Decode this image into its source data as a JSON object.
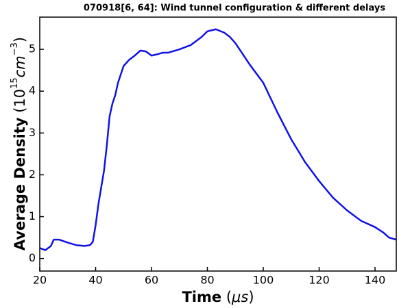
{
  "chart_data": {
    "type": "line",
    "title": "070918[6, 64]: Wind tunnel configuration & different delays",
    "xlabel": {
      "bold": "Time",
      "unit_open": "(",
      "unit": "μs",
      "unit_close": ")"
    },
    "ylabel": {
      "bold": "Average Density",
      "unit_base": "(10",
      "unit_exp1": "15",
      "unit_mid": "cm",
      "unit_exp2": "−3",
      "unit_close": ")"
    },
    "x": [
      20,
      22,
      24,
      25,
      27,
      30,
      33,
      36,
      38,
      39,
      40,
      41,
      42,
      43,
      44,
      45,
      46,
      47,
      48,
      49,
      50,
      52,
      54,
      56,
      58,
      60,
      62,
      64,
      66,
      70,
      74,
      78,
      80,
      83,
      86,
      88,
      90,
      92,
      95,
      100,
      105,
      110,
      115,
      120,
      125,
      130,
      135,
      140,
      143,
      145,
      147.6
    ],
    "series": [
      {
        "name": "Average Density",
        "color": "#1111e6",
        "values": [
          0.25,
          0.2,
          0.3,
          0.45,
          0.45,
          0.38,
          0.32,
          0.3,
          0.32,
          0.4,
          0.8,
          1.3,
          1.7,
          2.1,
          2.7,
          3.4,
          3.7,
          3.9,
          4.2,
          4.4,
          4.6,
          4.75,
          4.85,
          4.97,
          4.95,
          4.85,
          4.88,
          4.92,
          4.92,
          5.0,
          5.1,
          5.3,
          5.43,
          5.48,
          5.4,
          5.3,
          5.15,
          4.95,
          4.65,
          4.2,
          3.5,
          2.85,
          2.3,
          1.85,
          1.45,
          1.15,
          0.9,
          0.75,
          0.62,
          0.5,
          0.45
        ]
      }
    ],
    "xlim": [
      20,
      147.6
    ],
    "ylim": [
      -0.3,
      5.77
    ],
    "xticks": [
      20,
      40,
      60,
      80,
      100,
      120,
      140
    ],
    "yticks": [
      0,
      1,
      2,
      3,
      4,
      5
    ]
  }
}
